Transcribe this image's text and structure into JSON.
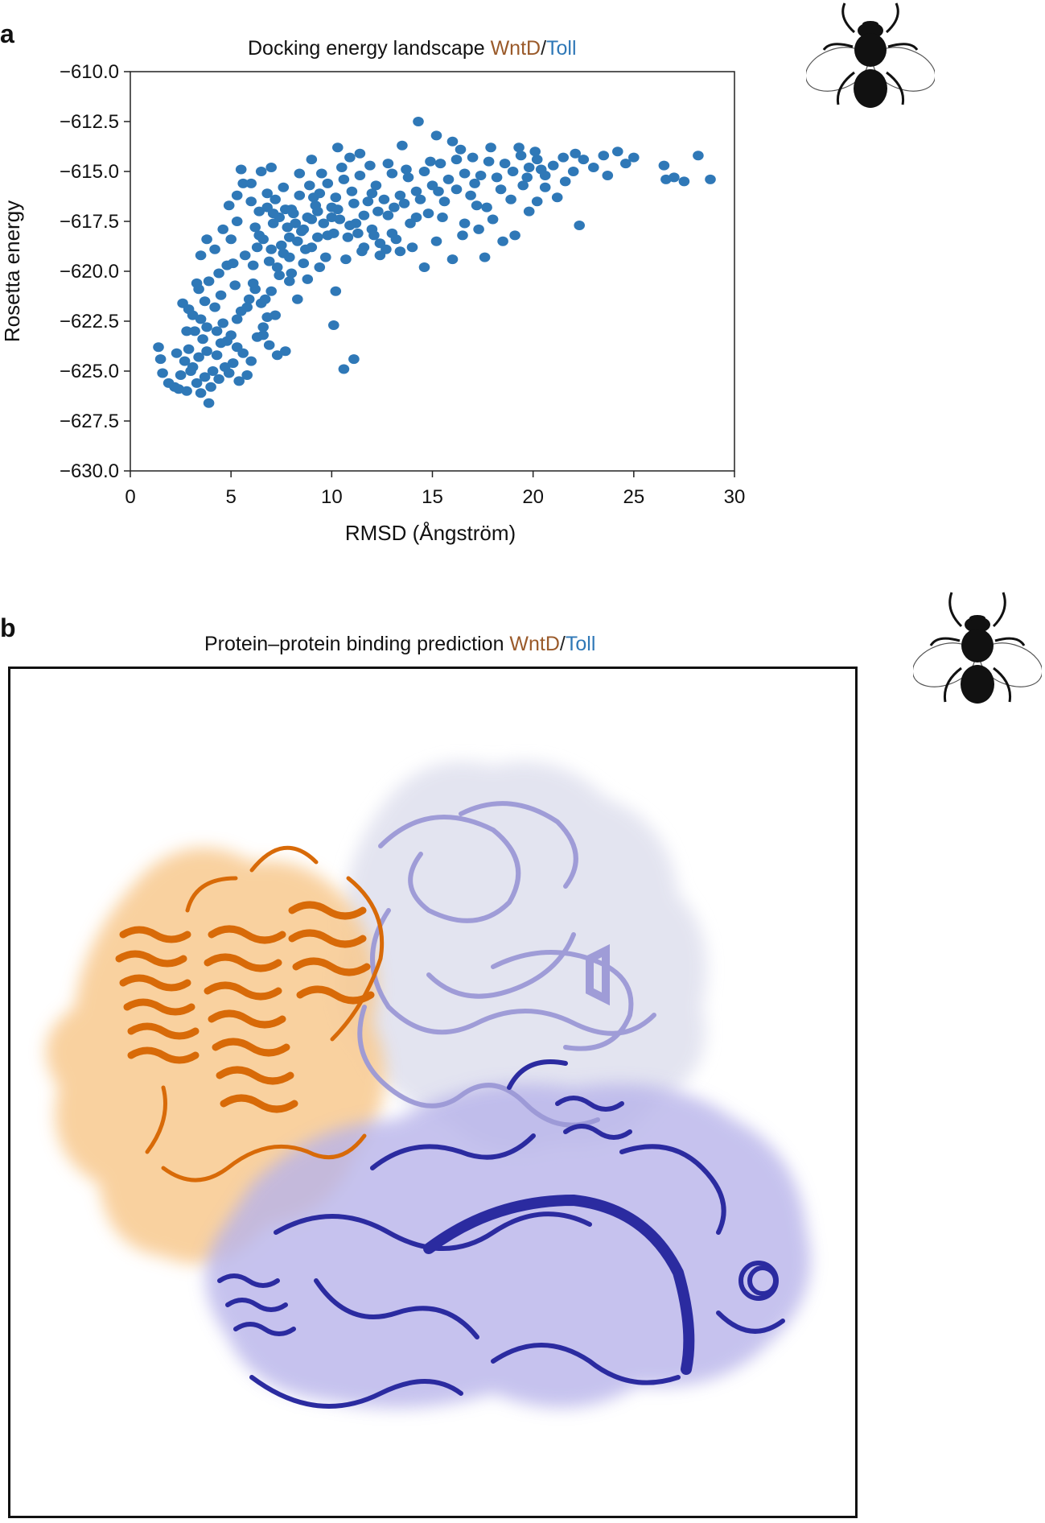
{
  "panel_a": {
    "label": "a",
    "title_main": "Docking energy landscape ",
    "title_ligand": "WntD",
    "title_sep": "/",
    "title_receptor": "Toll"
  },
  "panel_b": {
    "label": "b",
    "title_main": "Protein–protein binding prediction ",
    "title_ligand": "WntD",
    "title_sep": "/",
    "title_receptor": "Toll"
  },
  "icons": [
    "fly-icon",
    "fly-icon"
  ],
  "colors": {
    "points": "#2f78b7",
    "wntd_text": "#9a5a2a",
    "toll_text": "#2f78b7",
    "wntd_structure": "#e0750e",
    "toll_light": "#a9a6de",
    "toll_dark": "#2b2ba0"
  },
  "chart_data": {
    "type": "scatter",
    "title": "Docking energy landscape WntD/Toll",
    "xlabel": "RMSD (Ångström)",
    "ylabel": "Rosetta energy",
    "xlim": [
      0,
      30
    ],
    "ylim": [
      -630,
      -610
    ],
    "xticks": [
      0,
      5,
      10,
      15,
      20,
      25,
      30
    ],
    "yticks": [
      -630.0,
      -627.5,
      -625.0,
      -622.5,
      -620.0,
      -617.5,
      -615.0,
      -612.5,
      -610.0
    ],
    "ytick_labels": [
      "−630.0",
      "−627.5",
      "−625.0",
      "−622.5",
      "−620.0",
      "−617.5",
      "−615.0",
      "−612.5",
      "−610.0"
    ],
    "grid": false,
    "series": [
      {
        "points": [
          [
            1.4,
            -623.8
          ],
          [
            1.5,
            -624.4
          ],
          [
            1.6,
            -625.1
          ],
          [
            1.9,
            -625.6
          ],
          [
            2.2,
            -625.8
          ],
          [
            2.5,
            -625.2
          ],
          [
            2.7,
            -624.5
          ],
          [
            2.9,
            -623.9
          ],
          [
            3.1,
            -624.8
          ],
          [
            3.3,
            -625.6
          ],
          [
            3.5,
            -626.1
          ],
          [
            3.7,
            -625.3
          ],
          [
            3.9,
            -626.6
          ],
          [
            4.1,
            -625.0
          ],
          [
            4.3,
            -624.2
          ],
          [
            4.5,
            -623.6
          ],
          [
            2.4,
            -625.9
          ],
          [
            2.8,
            -626.0
          ],
          [
            3.0,
            -625.0
          ],
          [
            3.4,
            -624.3
          ],
          [
            3.6,
            -623.4
          ],
          [
            3.8,
            -624.0
          ],
          [
            4.0,
            -625.8
          ],
          [
            4.4,
            -625.4
          ],
          [
            4.7,
            -624.8
          ],
          [
            4.9,
            -625.1
          ],
          [
            5.1,
            -624.6
          ],
          [
            5.4,
            -625.5
          ],
          [
            5.8,
            -625.2
          ],
          [
            3.2,
            -623.0
          ],
          [
            3.5,
            -622.4
          ],
          [
            3.8,
            -622.8
          ],
          [
            2.6,
            -621.6
          ],
          [
            2.9,
            -621.9
          ],
          [
            3.3,
            -620.6
          ],
          [
            3.9,
            -620.5
          ],
          [
            4.2,
            -621.8
          ],
          [
            4.6,
            -622.6
          ],
          [
            5.0,
            -623.2
          ],
          [
            5.3,
            -623.8
          ],
          [
            5.6,
            -624.1
          ],
          [
            6.0,
            -624.5
          ],
          [
            6.3,
            -623.3
          ],
          [
            6.6,
            -622.8
          ],
          [
            6.9,
            -623.7
          ],
          [
            7.3,
            -624.2
          ],
          [
            7.7,
            -624.0
          ],
          [
            5.5,
            -622.0
          ],
          [
            5.9,
            -621.4
          ],
          [
            6.2,
            -620.9
          ],
          [
            6.5,
            -621.6
          ],
          [
            6.8,
            -622.3
          ],
          [
            7.0,
            -621.0
          ],
          [
            7.4,
            -620.2
          ],
          [
            4.4,
            -620.1
          ],
          [
            4.8,
            -619.7
          ],
          [
            5.2,
            -620.7
          ],
          [
            3.5,
            -619.2
          ],
          [
            3.8,
            -618.4
          ],
          [
            4.2,
            -618.9
          ],
          [
            4.6,
            -617.9
          ],
          [
            5.0,
            -618.4
          ],
          [
            5.3,
            -617.5
          ],
          [
            5.7,
            -619.2
          ],
          [
            6.1,
            -619.7
          ],
          [
            6.4,
            -618.2
          ],
          [
            4.9,
            -616.7
          ],
          [
            5.3,
            -616.2
          ],
          [
            5.6,
            -615.6
          ],
          [
            6.0,
            -616.5
          ],
          [
            6.4,
            -617.0
          ],
          [
            6.8,
            -616.1
          ],
          [
            7.1,
            -617.6
          ],
          [
            7.5,
            -618.7
          ],
          [
            7.9,
            -619.3
          ],
          [
            8.3,
            -618.5
          ],
          [
            8.6,
            -619.6
          ],
          [
            9.0,
            -618.8
          ],
          [
            9.4,
            -619.8
          ],
          [
            9.8,
            -618.2
          ],
          [
            7.2,
            -616.4
          ],
          [
            7.6,
            -615.8
          ],
          [
            8.0,
            -616.9
          ],
          [
            8.4,
            -616.2
          ],
          [
            8.8,
            -617.3
          ],
          [
            9.2,
            -616.7
          ],
          [
            9.6,
            -617.6
          ],
          [
            10.0,
            -616.8
          ],
          [
            10.4,
            -617.4
          ],
          [
            10.8,
            -618.3
          ],
          [
            11.2,
            -617.6
          ],
          [
            11.6,
            -618.8
          ],
          [
            12.0,
            -617.9
          ],
          [
            12.4,
            -618.6
          ],
          [
            12.8,
            -617.2
          ],
          [
            13.2,
            -618.4
          ],
          [
            6.2,
            -617.8
          ],
          [
            6.6,
            -618.4
          ],
          [
            7.0,
            -618.9
          ],
          [
            7.4,
            -617.3
          ],
          [
            7.8,
            -617.8
          ],
          [
            8.2,
            -617.6
          ],
          [
            8.6,
            -617.9
          ],
          [
            9.0,
            -617.4
          ],
          [
            9.4,
            -616.1
          ],
          [
            9.8,
            -615.6
          ],
          [
            10.2,
            -616.3
          ],
          [
            10.6,
            -615.4
          ],
          [
            11.0,
            -616.0
          ],
          [
            11.4,
            -615.2
          ],
          [
            11.8,
            -616.5
          ],
          [
            12.2,
            -615.7
          ],
          [
            12.6,
            -616.4
          ],
          [
            13.0,
            -615.1
          ],
          [
            13.4,
            -616.2
          ],
          [
            13.8,
            -615.3
          ],
          [
            14.2,
            -616.0
          ],
          [
            14.6,
            -615.0
          ],
          [
            15.0,
            -615.7
          ],
          [
            15.4,
            -614.6
          ],
          [
            15.8,
            -615.4
          ],
          [
            16.2,
            -614.4
          ],
          [
            16.6,
            -615.1
          ],
          [
            17.0,
            -614.3
          ],
          [
            17.4,
            -615.2
          ],
          [
            17.8,
            -614.5
          ],
          [
            18.2,
            -615.3
          ],
          [
            18.6,
            -614.6
          ],
          [
            19.0,
            -615.0
          ],
          [
            19.4,
            -614.2
          ],
          [
            19.8,
            -614.8
          ],
          [
            20.2,
            -614.4
          ],
          [
            20.6,
            -615.2
          ],
          [
            21.0,
            -614.7
          ],
          [
            21.5,
            -614.3
          ],
          [
            22.0,
            -615.0
          ],
          [
            22.5,
            -614.4
          ],
          [
            23.0,
            -614.8
          ],
          [
            23.5,
            -614.2
          ],
          [
            24.2,
            -614.0
          ],
          [
            25.0,
            -614.3
          ],
          [
            26.5,
            -614.7
          ],
          [
            27.0,
            -615.3
          ],
          [
            27.5,
            -615.5
          ],
          [
            28.2,
            -614.2
          ],
          [
            28.8,
            -615.4
          ],
          [
            26.6,
            -615.4
          ],
          [
            14.3,
            -612.5
          ],
          [
            13.5,
            -613.7
          ],
          [
            15.2,
            -613.2
          ],
          [
            16.0,
            -613.5
          ],
          [
            11.4,
            -614.1
          ],
          [
            10.9,
            -614.3
          ],
          [
            10.3,
            -613.8
          ],
          [
            9.0,
            -614.4
          ],
          [
            8.4,
            -615.1
          ],
          [
            10.1,
            -622.7
          ],
          [
            10.6,
            -624.9
          ],
          [
            11.1,
            -624.4
          ],
          [
            10.2,
            -621.0
          ],
          [
            7.9,
            -620.5
          ],
          [
            8.3,
            -621.4
          ],
          [
            7.2,
            -622.2
          ],
          [
            6.6,
            -623.2
          ],
          [
            12.4,
            -619.2
          ],
          [
            13.4,
            -619.0
          ],
          [
            14.6,
            -619.8
          ],
          [
            16.0,
            -619.4
          ],
          [
            17.6,
            -619.3
          ],
          [
            18.5,
            -618.5
          ],
          [
            19.1,
            -618.2
          ],
          [
            19.8,
            -617.0
          ],
          [
            20.2,
            -616.5
          ],
          [
            20.6,
            -615.8
          ],
          [
            22.3,
            -617.7
          ],
          [
            21.2,
            -616.3
          ],
          [
            18.0,
            -617.4
          ],
          [
            17.2,
            -616.7
          ],
          [
            16.6,
            -617.6
          ],
          [
            15.6,
            -616.5
          ],
          [
            14.8,
            -617.1
          ],
          [
            13.9,
            -617.6
          ],
          [
            13.1,
            -616.8
          ],
          [
            12.3,
            -617.0
          ],
          [
            11.6,
            -617.2
          ],
          [
            10.9,
            -617.7
          ],
          [
            10.1,
            -618.1
          ],
          [
            9.3,
            -618.3
          ],
          [
            8.5,
            -618.0
          ],
          [
            7.6,
            -619.1
          ],
          [
            6.9,
            -619.5
          ],
          [
            6.1,
            -620.6
          ],
          [
            5.8,
            -621.8
          ],
          [
            5.3,
            -622.4
          ],
          [
            4.8,
            -623.5
          ],
          [
            4.3,
            -623.0
          ],
          [
            3.7,
            -621.5
          ],
          [
            3.1,
            -622.2
          ],
          [
            2.8,
            -623.0
          ],
          [
            2.3,
            -624.1
          ],
          [
            8.9,
            -615.7
          ],
          [
            9.5,
            -615.1
          ],
          [
            10.5,
            -614.8
          ],
          [
            11.9,
            -614.7
          ],
          [
            12.8,
            -614.6
          ],
          [
            13.7,
            -614.9
          ],
          [
            14.9,
            -614.5
          ],
          [
            16.4,
            -613.9
          ],
          [
            17.9,
            -613.8
          ],
          [
            19.3,
            -613.8
          ],
          [
            20.1,
            -614.0
          ],
          [
            22.1,
            -614.1
          ],
          [
            6.5,
            -615.0
          ],
          [
            7.0,
            -614.8
          ],
          [
            5.5,
            -614.9
          ],
          [
            6.0,
            -615.6
          ],
          [
            7.7,
            -616.9
          ],
          [
            8.1,
            -617.1
          ],
          [
            9.1,
            -616.3
          ],
          [
            10.3,
            -616.9
          ],
          [
            11.1,
            -616.6
          ],
          [
            12.0,
            -616.1
          ],
          [
            13.6,
            -616.6
          ],
          [
            14.4,
            -616.4
          ],
          [
            15.3,
            -616.0
          ],
          [
            16.2,
            -615.9
          ],
          [
            17.1,
            -615.6
          ],
          [
            18.4,
            -615.9
          ],
          [
            19.5,
            -615.7
          ],
          [
            21.6,
            -615.5
          ],
          [
            23.7,
            -615.2
          ],
          [
            24.6,
            -614.6
          ],
          [
            9.7,
            -619.3
          ],
          [
            10.7,
            -619.4
          ],
          [
            11.5,
            -619.0
          ],
          [
            12.7,
            -618.9
          ],
          [
            14.0,
            -618.8
          ],
          [
            15.2,
            -618.5
          ],
          [
            16.5,
            -618.2
          ],
          [
            17.3,
            -617.9
          ],
          [
            6.3,
            -618.8
          ],
          [
            7.3,
            -619.8
          ],
          [
            8.0,
            -620.1
          ],
          [
            8.8,
            -620.4
          ],
          [
            5.1,
            -619.6
          ],
          [
            4.5,
            -621.2
          ],
          [
            3.4,
            -620.9
          ],
          [
            6.7,
            -621.4
          ],
          [
            9.3,
            -617.0
          ],
          [
            10.0,
            -617.3
          ],
          [
            11.3,
            -618.1
          ],
          [
            12.1,
            -618.2
          ],
          [
            13.0,
            -618.1
          ],
          [
            14.2,
            -617.3
          ],
          [
            15.5,
            -617.3
          ],
          [
            16.9,
            -616.2
          ],
          [
            17.7,
            -616.8
          ],
          [
            18.9,
            -616.4
          ],
          [
            19.7,
            -615.3
          ],
          [
            20.4,
            -614.9
          ],
          [
            8.7,
            -618.9
          ],
          [
            7.9,
            -618.3
          ],
          [
            7.1,
            -617.1
          ],
          [
            6.8,
            -616.8
          ]
        ]
      }
    ]
  }
}
